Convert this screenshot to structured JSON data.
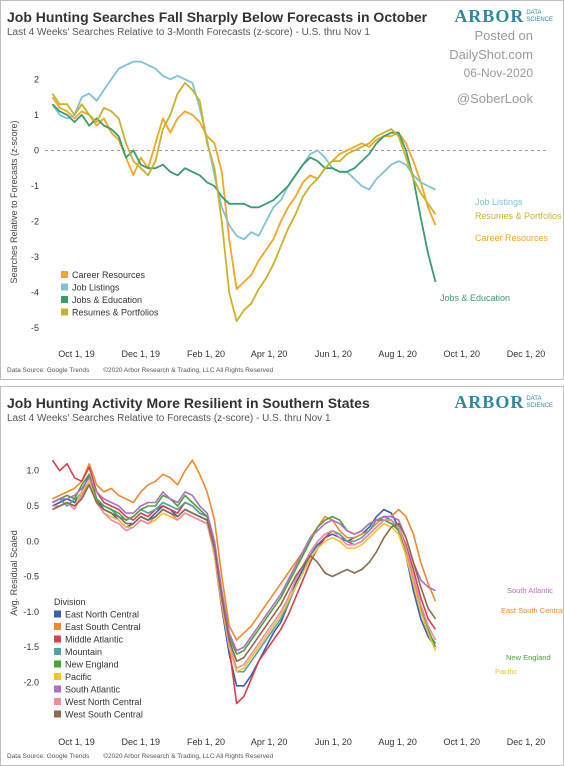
{
  "watermark": {
    "posted_on": "Posted on",
    "site": "DailyShot.com",
    "date": "06-Nov-2020",
    "handle": "@SoberLook"
  },
  "logo": {
    "word": "ARBOR",
    "line1": "DATA",
    "line2": "SCIENCE"
  },
  "chart_data": [
    {
      "type": "line",
      "title": "Job Hunting Searches Fall Sharply Below Forecasts in October",
      "subtitle": "Last 4 Weeks' Searches Relative to 3-Month Forecasts (z-score)  - U.S. thru Nov 1",
      "ylabel": "Searches Relative to Forecasts (z-score)",
      "xlabel": "",
      "x_ticks": [
        "Oct 1, 19",
        "Dec 1, 19",
        "Feb 1, 20",
        "Apr 1, 20",
        "Jun 1, 20",
        "Aug 1, 20",
        "Oct 1, 20",
        "Dec 1, 20"
      ],
      "y_ticks": [
        2,
        1,
        0,
        -1,
        -2,
        -3,
        -4,
        -5
      ],
      "ylim": [
        -5.5,
        2.6
      ],
      "zero_line": "dashed",
      "legend_placement": "bottom-left",
      "source": "Data Source: Google Trends",
      "copyright": "©2020 Arbor Research & Trading, LLC  All Rights Reserved",
      "x_start": "2019-09-08",
      "series": [
        {
          "name": "Career Resources",
          "color": "#f5a623",
          "end_label": "Career Resources",
          "values": [
            1.5,
            1.2,
            1.1,
            0.9,
            1.1,
            1.0,
            0.7,
            0.9,
            0.5,
            0.3,
            -0.2,
            -0.7,
            -0.2,
            -0.5,
            0.2,
            0.9,
            0.5,
            0.9,
            1.1,
            1.0,
            0.8,
            0.4,
            0.2,
            -0.6,
            -2.5,
            -3.9,
            -3.7,
            -3.5,
            -3.1,
            -2.8,
            -2.5,
            -2.0,
            -1.6,
            -1.3,
            -0.9,
            -0.7,
            -0.8,
            -0.5,
            -0.3,
            -0.1,
            0.0,
            0.1,
            0.2,
            0.1,
            0.3,
            0.4,
            0.4,
            0.5,
            0.2,
            -0.3,
            -0.9,
            -1.6,
            -2.1
          ]
        },
        {
          "name": "Job Listings",
          "color": "#7fc3d6",
          "end_label": "Job Listings",
          "values": [
            1.3,
            1.0,
            0.9,
            1.0,
            1.5,
            1.6,
            1.4,
            1.7,
            2.0,
            2.3,
            2.4,
            2.5,
            2.5,
            2.4,
            2.3,
            2.1,
            2.0,
            2.1,
            2.0,
            1.9,
            1.2,
            0.3,
            -0.7,
            -1.6,
            -2.1,
            -2.4,
            -2.5,
            -2.3,
            -2.4,
            -2.0,
            -1.6,
            -1.4,
            -1.0,
            -0.7,
            -0.4,
            -0.1,
            0.0,
            -0.2,
            -0.5,
            -0.6,
            -0.6,
            -0.8,
            -1.0,
            -1.1,
            -0.8,
            -0.6,
            -0.4,
            -0.3,
            -0.4,
            -0.7,
            -0.9,
            -1.0,
            -1.1
          ]
        },
        {
          "name": "Jobs & Education",
          "color": "#3a9d6f",
          "end_label": "Jobs & Education",
          "values": [
            1.3,
            1.1,
            1.0,
            0.8,
            1.0,
            0.7,
            0.9,
            0.7,
            0.6,
            0.4,
            -0.2,
            0.0,
            -0.4,
            -0.5,
            -0.5,
            -0.4,
            -0.6,
            -0.7,
            -0.5,
            -0.6,
            -0.7,
            -0.9,
            -1.0,
            -1.3,
            -1.5,
            -1.5,
            -1.5,
            -1.6,
            -1.6,
            -1.5,
            -1.4,
            -1.2,
            -1.0,
            -0.7,
            -0.4,
            -0.2,
            -0.3,
            -0.5,
            -0.5,
            -0.6,
            -0.6,
            -0.5,
            -0.3,
            -0.1,
            0.2,
            0.4,
            0.5,
            0.5,
            0.0,
            -0.8,
            -1.9,
            -2.9,
            -3.7
          ]
        },
        {
          "name": "Resumes & Portfolios",
          "color": "#c8b42c",
          "end_label": "Resumes & Portfolios",
          "values": [
            1.6,
            1.3,
            1.3,
            1.0,
            1.3,
            1.0,
            0.8,
            1.2,
            1.1,
            0.9,
            0.2,
            -0.3,
            -0.5,
            -0.7,
            -0.3,
            0.6,
            1.0,
            1.6,
            1.9,
            1.7,
            1.4,
            0.2,
            -0.5,
            -2.0,
            -4.0,
            -4.8,
            -4.5,
            -4.3,
            -3.9,
            -3.6,
            -3.2,
            -2.7,
            -2.2,
            -1.8,
            -1.3,
            -1.0,
            -0.8,
            -0.5,
            -0.3,
            -0.3,
            -0.1,
            0.0,
            0.1,
            0.2,
            0.4,
            0.5,
            0.6,
            0.4,
            -0.2,
            -0.8,
            -1.2,
            -1.5,
            -1.8
          ]
        }
      ]
    },
    {
      "type": "line",
      "title": "Job Hunting Activity More Resilient in Southern States",
      "subtitle": "Last 4 Weeks' Searches Relative to Forecasts (z-score)  - U.S. thru Nov 1",
      "ylabel": "Avg. Residual Scaled",
      "xlabel": "",
      "x_ticks": [
        "Oct 1, 19",
        "Dec 1, 19",
        "Feb 1, 20",
        "Apr 1, 20",
        "Jun 1, 20",
        "Aug 1, 20",
        "Oct 1, 20",
        "Dec 1, 20"
      ],
      "y_ticks": [
        1.0,
        0.5,
        0.0,
        -0.5,
        -1.0,
        -1.5,
        -2.0
      ],
      "ylim": [
        -2.35,
        1.45
      ],
      "legend_title": "Division",
      "legend_placement": "bottom-left",
      "source": "Data Source: Google Trends",
      "copyright": "©2020 Arbor Research & Trading, LLC  All Rights Reserved",
      "x_start": "2019-09-08",
      "series": [
        {
          "name": "East North Central",
          "color": "#3b5fb0",
          "end_label": "",
          "values": [
            0.5,
            0.55,
            0.6,
            0.55,
            0.7,
            0.95,
            0.6,
            0.45,
            0.4,
            0.3,
            0.2,
            0.25,
            0.35,
            0.3,
            0.4,
            0.5,
            0.45,
            0.35,
            0.45,
            0.4,
            0.35,
            0.3,
            -0.2,
            -0.95,
            -1.6,
            -2.05,
            -2.05,
            -1.9,
            -1.7,
            -1.5,
            -1.3,
            -1.15,
            -0.9,
            -0.6,
            -0.4,
            -0.2,
            -0.05,
            0.05,
            0.1,
            0.05,
            0.0,
            0.05,
            0.1,
            0.2,
            0.35,
            0.45,
            0.4,
            0.2,
            -0.2,
            -0.7,
            -1.1,
            -1.35,
            -1.5
          ]
        },
        {
          "name": "East South Central",
          "color": "#ef8a2c",
          "end_label": "East South Central",
          "values": [
            0.6,
            0.65,
            0.7,
            0.75,
            0.85,
            1.1,
            0.8,
            0.7,
            0.75,
            0.65,
            0.6,
            0.55,
            0.7,
            0.8,
            0.85,
            0.95,
            0.9,
            0.8,
            1.0,
            1.15,
            0.95,
            0.7,
            0.3,
            -0.5,
            -1.2,
            -1.4,
            -1.3,
            -1.2,
            -1.05,
            -0.9,
            -0.75,
            -0.6,
            -0.45,
            -0.3,
            -0.15,
            0.05,
            0.2,
            0.35,
            0.3,
            0.15,
            0.05,
            0.05,
            0.1,
            0.15,
            0.25,
            0.35,
            0.35,
            0.45,
            0.35,
            0.1,
            -0.3,
            -0.6,
            -0.85
          ]
        },
        {
          "name": "Middle Atlantic",
          "color": "#d6404f",
          "end_label": "",
          "values": [
            1.15,
            1.0,
            1.1,
            0.9,
            0.85,
            1.05,
            0.7,
            0.55,
            0.5,
            0.45,
            0.35,
            0.3,
            0.4,
            0.35,
            0.45,
            0.5,
            0.45,
            0.4,
            0.55,
            0.5,
            0.4,
            0.35,
            -0.15,
            -0.9,
            -1.5,
            -2.3,
            -2.2,
            -1.95,
            -1.7,
            -1.55,
            -1.4,
            -1.25,
            -1.05,
            -0.8,
            -0.55,
            -0.3,
            -0.1,
            0.05,
            0.15,
            0.1,
            0.0,
            -0.05,
            0.0,
            0.1,
            0.2,
            0.3,
            0.3,
            0.2,
            -0.05,
            -0.4,
            -0.8,
            -1.1,
            -1.25
          ]
        },
        {
          "name": "Mountain",
          "color": "#4da3a8",
          "end_label": "",
          "values": [
            0.55,
            0.6,
            0.5,
            0.6,
            0.65,
            0.85,
            0.6,
            0.5,
            0.45,
            0.35,
            0.3,
            0.35,
            0.45,
            0.4,
            0.45,
            0.55,
            0.5,
            0.45,
            0.55,
            0.5,
            0.4,
            0.35,
            -0.1,
            -0.85,
            -1.5,
            -1.85,
            -1.85,
            -1.7,
            -1.55,
            -1.4,
            -1.25,
            -1.1,
            -0.9,
            -0.65,
            -0.45,
            -0.2,
            0.0,
            0.1,
            0.15,
            0.1,
            0.0,
            0.0,
            0.05,
            0.15,
            0.3,
            0.35,
            0.3,
            0.15,
            -0.2,
            -0.6,
            -1.0,
            -1.3,
            -1.45
          ]
        },
        {
          "name": "New England",
          "color": "#4aa43a",
          "end_label": "New England",
          "values": [
            0.55,
            0.6,
            0.65,
            0.6,
            0.8,
            0.95,
            0.6,
            0.5,
            0.45,
            0.4,
            0.3,
            0.35,
            0.45,
            0.5,
            0.5,
            0.65,
            0.6,
            0.5,
            0.65,
            0.55,
            0.45,
            0.35,
            -0.05,
            -0.8,
            -1.35,
            -1.6,
            -1.55,
            -1.4,
            -1.25,
            -1.1,
            -0.95,
            -0.8,
            -0.6,
            -0.4,
            -0.2,
            0.0,
            0.2,
            0.3,
            0.35,
            0.3,
            0.15,
            0.1,
            0.15,
            0.25,
            0.3,
            0.3,
            0.25,
            0.15,
            -0.15,
            -0.55,
            -0.95,
            -1.25,
            -1.5
          ]
        },
        {
          "name": "Pacific",
          "color": "#f1c232",
          "end_label": "Pacific",
          "values": [
            0.45,
            0.5,
            0.55,
            0.5,
            0.7,
            0.85,
            0.55,
            0.4,
            0.35,
            0.3,
            0.2,
            0.2,
            0.3,
            0.25,
            0.3,
            0.4,
            0.35,
            0.3,
            0.4,
            0.35,
            0.3,
            0.25,
            -0.2,
            -0.9,
            -1.5,
            -1.85,
            -1.8,
            -1.65,
            -1.5,
            -1.35,
            -1.2,
            -1.05,
            -0.85,
            -0.65,
            -0.45,
            -0.25,
            -0.1,
            0.0,
            0.05,
            0.0,
            -0.1,
            -0.1,
            -0.05,
            0.05,
            0.15,
            0.25,
            0.2,
            0.1,
            -0.2,
            -0.6,
            -1.0,
            -1.3,
            -1.55
          ]
        },
        {
          "name": "South Atlantic",
          "color": "#b06fc4",
          "end_label": "South Atlantic",
          "values": [
            0.55,
            0.6,
            0.6,
            0.65,
            0.75,
            0.9,
            0.7,
            0.6,
            0.55,
            0.5,
            0.4,
            0.4,
            0.5,
            0.55,
            0.55,
            0.7,
            0.6,
            0.55,
            0.7,
            0.65,
            0.5,
            0.4,
            0.0,
            -0.7,
            -1.3,
            -1.55,
            -1.5,
            -1.35,
            -1.2,
            -1.05,
            -0.9,
            -0.75,
            -0.55,
            -0.35,
            -0.15,
            0.05,
            0.15,
            0.25,
            0.3,
            0.25,
            0.15,
            0.1,
            0.15,
            0.25,
            0.3,
            0.35,
            0.35,
            0.3,
            0.05,
            -0.3,
            -0.55,
            -0.65,
            -0.7
          ]
        },
        {
          "name": "West North Central",
          "color": "#f08aa6",
          "end_label": "",
          "values": [
            0.5,
            0.5,
            0.55,
            0.45,
            0.65,
            0.8,
            0.55,
            0.4,
            0.3,
            0.25,
            0.15,
            0.2,
            0.3,
            0.25,
            0.35,
            0.45,
            0.4,
            0.3,
            0.4,
            0.35,
            0.3,
            0.25,
            -0.15,
            -0.85,
            -1.45,
            -1.8,
            -1.75,
            -1.6,
            -1.45,
            -1.3,
            -1.15,
            -1.0,
            -0.8,
            -0.55,
            -0.35,
            -0.15,
            0.0,
            0.1,
            0.15,
            0.05,
            -0.05,
            -0.05,
            0.0,
            0.1,
            0.2,
            0.3,
            0.3,
            0.2,
            -0.1,
            -0.5,
            -0.9,
            -1.2,
            -1.4
          ]
        },
        {
          "name": "West South Central",
          "color": "#8b6a4f",
          "end_label": "",
          "values": [
            0.45,
            0.5,
            0.55,
            0.5,
            0.6,
            0.8,
            0.55,
            0.45,
            0.4,
            0.35,
            0.25,
            0.25,
            0.35,
            0.3,
            0.35,
            0.45,
            0.4,
            0.35,
            0.45,
            0.4,
            0.35,
            0.3,
            -0.1,
            -0.8,
            -1.4,
            -1.7,
            -1.65,
            -1.5,
            -1.35,
            -1.2,
            -1.05,
            -0.9,
            -0.7,
            -0.5,
            -0.35,
            -0.2,
            -0.3,
            -0.45,
            -0.5,
            -0.45,
            -0.4,
            -0.45,
            -0.4,
            -0.3,
            -0.15,
            0.05,
            0.2,
            0.25,
            0.05,
            -0.3,
            -0.65,
            -0.95,
            -1.1
          ]
        }
      ]
    }
  ]
}
